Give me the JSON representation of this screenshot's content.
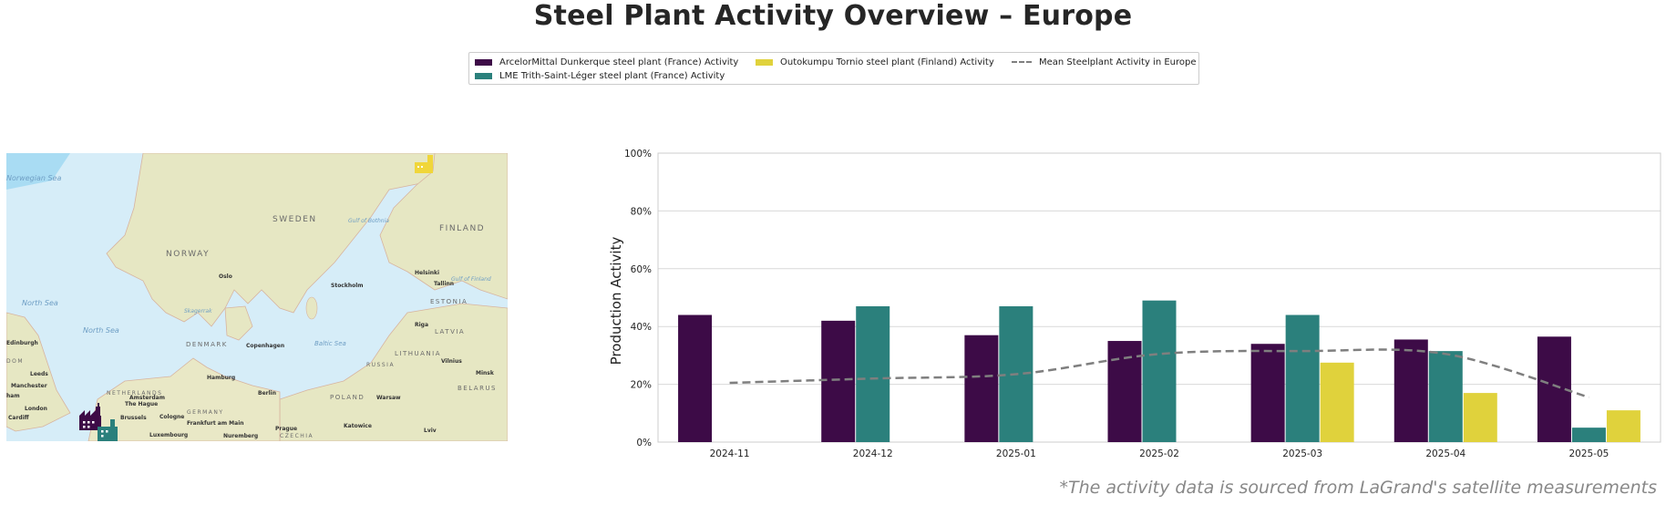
{
  "title": "Steel Plant Activity Overview – Europe",
  "footnote": "*The activity data is sourced from LaGrand's satellite measurements",
  "legend": {
    "items": [
      {
        "label": "ArcelorMittal Dunkerque steel plant (France) Activity",
        "color": "#3d0b47"
      },
      {
        "label": "LME Trith-Saint-Léger steel plant (France) Activity",
        "color": "#2b807c"
      },
      {
        "label": "Outokumpu Tornio steel plant (Finland) Activity",
        "color": "#e0d23c"
      },
      {
        "label": "Mean Steelplant Activity in Europe",
        "color": "#7f7f7f"
      }
    ]
  },
  "map": {
    "labels": {
      "sweden": "SWEDEN",
      "finland": "FINLAND",
      "norway": "NORWAY",
      "norwegian_sea": "Norwegian Sea",
      "gulf_bothnia": "Gulf of Bothnia",
      "north_sea": "North Sea",
      "north_sea2": "North Sea",
      "oslo": "Oslo",
      "stockholm": "Stockholm",
      "helsinki": "Helsinki",
      "tallinn": "Tallinn",
      "gulf_finland": "Gulf of Finland",
      "estonia": "ESTONIA",
      "riga": "Riga",
      "latvia": "LATVIA",
      "skagerrak": "Skagerrak",
      "edinburgh": "Edinburgh",
      "denmark": "DENMARK",
      "copenhagen": "Copenhagen",
      "baltic_sea": "Baltic Sea",
      "lithuania": "LITHUANIA",
      "russia": "RUSSIA",
      "vilnius": "Vilnius",
      "minsk": "Minsk",
      "belarus": "BELARUS",
      "leeds": "Leeds",
      "manchester": "Manchester",
      "london": "London",
      "cardiff": "Cardiff",
      "netherlands": "NETHERLANDS",
      "amsterdam": "Amsterdam",
      "the_hague": "The Hague",
      "hamburg": "Hamburg",
      "berlin": "Berlin",
      "poland": "POLAND",
      "warsaw": "Warsaw",
      "germany": "GERMANY",
      "brussels": "Brussels",
      "cologne": "Cologne",
      "frankfurt": "Frankfurt am Main",
      "prague": "Prague",
      "katowice": "Katowice",
      "lviv": "Lviv",
      "luxembourg": "Luxembourg",
      "nuremberg": "Nuremberg",
      "czechia": "CZECHIA",
      "dom": "DOM",
      "ham": "ham",
      "kingdom": "Kingdom"
    }
  },
  "chart_data": {
    "type": "bar",
    "categories": [
      "2024-11",
      "2024-12",
      "2025-01",
      "2025-02",
      "2025-03",
      "2025-04",
      "2025-05"
    ],
    "series": [
      {
        "name": "ArcelorMittal Dunkerque steel plant (France) Activity",
        "color": "#3d0b47",
        "values": [
          44,
          42,
          37,
          35,
          34,
          35.5,
          36.5
        ]
      },
      {
        "name": "LME Trith-Saint-Léger steel plant (France) Activity",
        "color": "#2b807c",
        "values": [
          null,
          47,
          47,
          49,
          44,
          31.5,
          5
        ]
      },
      {
        "name": "Outokumpu Tornio steel plant (Finland) Activity",
        "color": "#e0d23c",
        "values": [
          null,
          null,
          null,
          null,
          27.5,
          17,
          11
        ]
      }
    ],
    "line": {
      "name": "Mean Steelplant Activity in Europe",
      "color": "#7f7f7f",
      "values": [
        20.5,
        22,
        23.5,
        30.5,
        31.5,
        30.5,
        15.5
      ]
    },
    "ylabel": "Production Activity",
    "ylim": [
      0,
      100
    ],
    "yticks": [
      0,
      20,
      40,
      60,
      80,
      100
    ],
    "ytick_labels": [
      "0%",
      "20%",
      "40%",
      "60%",
      "80%",
      "100%"
    ],
    "grid": "horizontal"
  }
}
